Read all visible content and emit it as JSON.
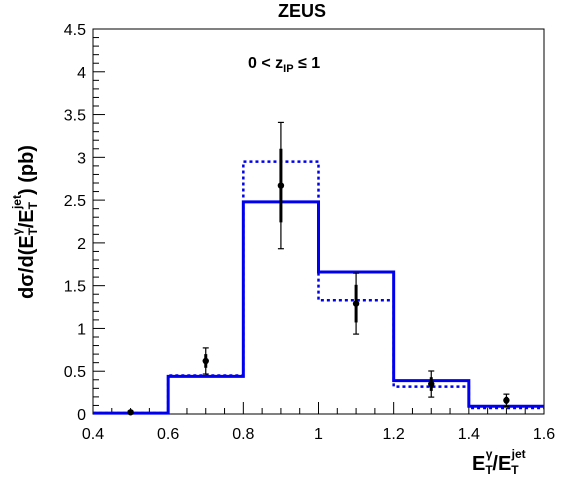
{
  "chart_data": {
    "type": "line",
    "title": "ZEUS",
    "annotation": {
      "pre": "0 < z",
      "sub": "IP",
      "post": " ≤ 1"
    },
    "xlabel": {
      "base": "E",
      "sup1": "γ",
      "sub1": "T",
      "slash": "/",
      "base2": "E",
      "sup2": "jet",
      "sub2": "T"
    },
    "ylabel": {
      "pre": "dσ/d(E",
      "sup1": "γ",
      "sub1": "T",
      "slash": "/E",
      "sup2": "jet",
      "sub2": "T",
      "post": ") (pb)"
    },
    "xlim": [
      0.4,
      1.6
    ],
    "ylim": [
      0,
      4.5
    ],
    "x_ticks": [
      "0.4",
      "0.6",
      "0.8",
      "1",
      "1.2",
      "1.4",
      "1.6"
    ],
    "x_tick_values": [
      0.4,
      0.6,
      0.8,
      1.0,
      1.2,
      1.4,
      1.6
    ],
    "y_ticks": [
      "0",
      "0.5",
      "1",
      "1.5",
      "2",
      "2.5",
      "3",
      "3.5",
      "4",
      "4.5"
    ],
    "y_tick_values": [
      0,
      0.5,
      1,
      1.5,
      2,
      2.5,
      3,
      3.5,
      4,
      4.5
    ],
    "bin_edges": [
      0.4,
      0.6,
      0.8,
      1.0,
      1.2,
      1.4,
      1.6
    ],
    "series": [
      {
        "style": "solid",
        "color": "#0000ee",
        "values": [
          0.01,
          0.44,
          2.48,
          1.66,
          0.39,
          0.09
        ]
      },
      {
        "style": "dotted",
        "color": "#0000ee",
        "values": [
          0.01,
          0.45,
          2.95,
          1.33,
          0.32,
          0.07
        ]
      }
    ],
    "points": [
      {
        "x": 0.5,
        "y": 0.02,
        "stat": 0.01,
        "syst": 0.01
      },
      {
        "x": 0.7,
        "y": 0.62,
        "stat": 0.08,
        "syst": 0.13
      },
      {
        "x": 0.9,
        "y": 2.67,
        "stat": 0.43,
        "syst": 0.6
      },
      {
        "x": 1.1,
        "y": 1.29,
        "stat": 0.22,
        "syst": 0.28
      },
      {
        "x": 1.3,
        "y": 0.35,
        "stat": 0.08,
        "syst": 0.13
      },
      {
        "x": 1.5,
        "y": 0.16,
        "stat": 0.04,
        "syst": 0.06
      }
    ]
  }
}
